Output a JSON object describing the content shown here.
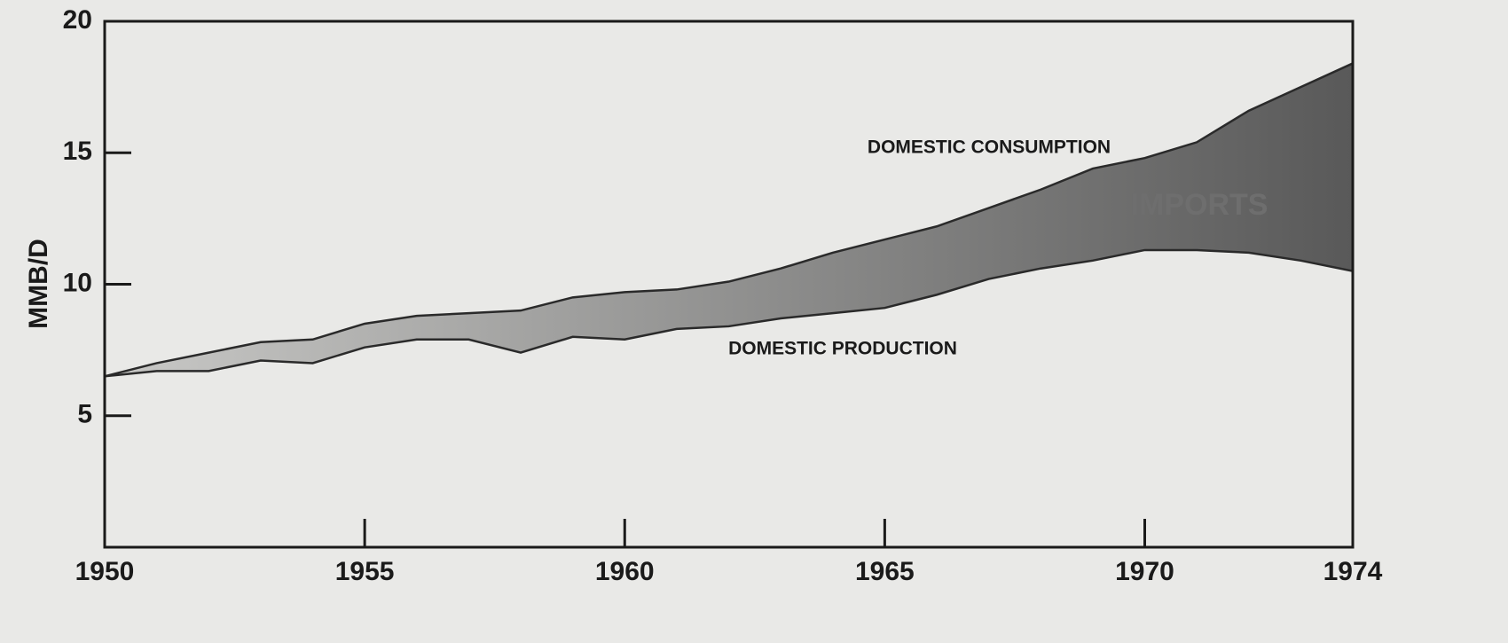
{
  "chart_data": {
    "type": "area-band",
    "y_label": "MMB/D",
    "x": [
      1950,
      1951,
      1952,
      1953,
      1954,
      1955,
      1956,
      1957,
      1958,
      1959,
      1960,
      1961,
      1962,
      1963,
      1964,
      1965,
      1966,
      1967,
      1968,
      1969,
      1970,
      1971,
      1972,
      1973,
      1974
    ],
    "series": [
      {
        "name": "DOMESTIC CONSUMPTION",
        "color": "#2a2a2a",
        "values": [
          6.5,
          7.0,
          7.4,
          7.8,
          7.9,
          8.5,
          8.8,
          8.9,
          9.0,
          9.5,
          9.7,
          9.8,
          10.1,
          10.6,
          11.2,
          11.7,
          12.2,
          12.9,
          13.6,
          14.4,
          14.8,
          15.4,
          16.6,
          17.5,
          18.4
        ]
      },
      {
        "name": "DOMESTIC PRODUCTION",
        "color": "#2a2a2a",
        "values": [
          6.5,
          6.7,
          6.7,
          7.1,
          7.0,
          7.6,
          7.9,
          7.9,
          7.4,
          8.0,
          7.9,
          8.3,
          8.4,
          8.7,
          8.9,
          9.1,
          9.6,
          10.2,
          10.6,
          10.9,
          11.3,
          11.3,
          11.2,
          10.9,
          10.5
        ]
      }
    ],
    "band_label": "IMPORTS",
    "band_colors": [
      "#c9c9c7",
      "#595959"
    ],
    "xlim": [
      1950,
      1974
    ],
    "xticks": [
      1950,
      1955,
      1960,
      1965,
      1970,
      1974
    ],
    "ylim": [
      0,
      20
    ],
    "yticks": [
      5,
      10,
      15,
      20
    ],
    "grid": false
  }
}
